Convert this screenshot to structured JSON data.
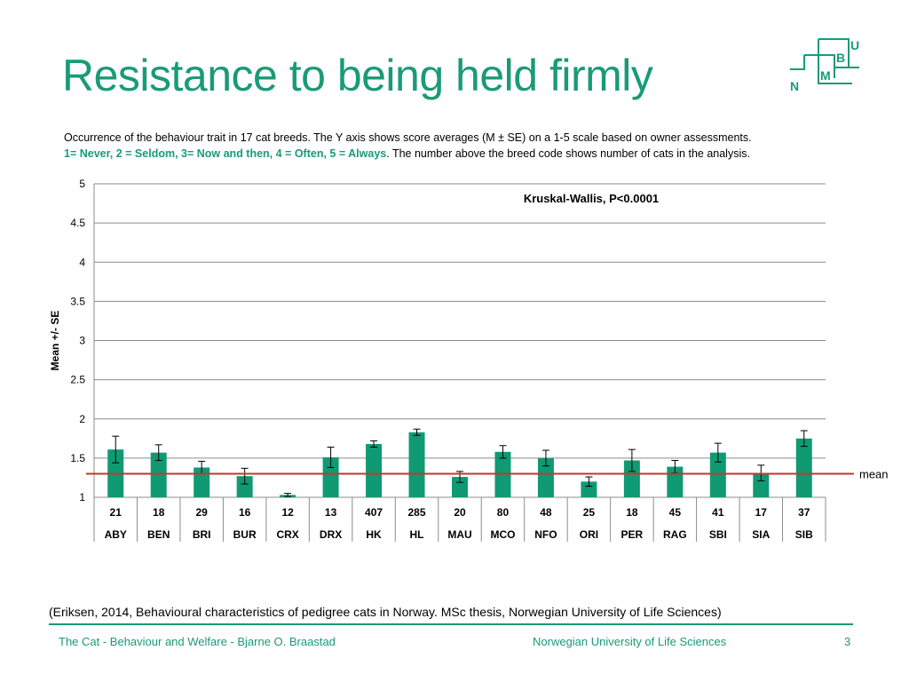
{
  "slide": {
    "title": "Resistance to being held firmly",
    "description_1": "Occurrence of the behaviour trait in 17 cat breeds. The Y axis shows score averages (M ± SE) on a 1-5 scale based on owner assessments.",
    "description_scale": "1= Never, 2 = Seldom, 3= Now and then, 4 = Often, 5 = Always",
    "description_2": ". The number above the breed code shows number of cats in the analysis.",
    "citation": "(Eriksen, 2014, Behavioural characteristics of pedigree cats in Norway. MSc thesis, Norwegian University of Life Sciences)",
    "footer_left": "The Cat - Behaviour and Welfare - Bjarne O. Braastad",
    "footer_center": "Norwegian University of Life Sciences",
    "page_number": "3"
  },
  "logo": {
    "letters": [
      "U",
      "B",
      "M",
      "N"
    ]
  },
  "colors": {
    "accent": "#1a9a78",
    "bar": "#109a74",
    "mean_line": "#c0392b"
  },
  "chart_data": {
    "type": "bar",
    "ylabel": "Mean +/- SE",
    "ylim": [
      1,
      5
    ],
    "yticks": [
      "1",
      "1.5",
      "2",
      "2.5",
      "3",
      "3.5",
      "4",
      "4.5",
      "5"
    ],
    "annotation": "Kruskal-Wallis, P<0.0001",
    "mean_label": "mean",
    "mean_value": 1.3,
    "categories": [
      "ABY",
      "BEN",
      "BRI",
      "BUR",
      "CRX",
      "DRX",
      "HK",
      "HL",
      "MAU",
      "MCO",
      "NFO",
      "ORI",
      "PER",
      "RAG",
      "SBI",
      "SIA",
      "SIB"
    ],
    "n": [
      "21",
      "18",
      "29",
      "16",
      "12",
      "13",
      "407",
      "285",
      "20",
      "80",
      "48",
      "25",
      "18",
      "45",
      "41",
      "17",
      "37"
    ],
    "values": [
      1.61,
      1.57,
      1.38,
      1.27,
      1.03,
      1.51,
      1.68,
      1.83,
      1.26,
      1.58,
      1.5,
      1.2,
      1.47,
      1.39,
      1.57,
      1.31,
      1.75
    ],
    "errors": [
      0.17,
      0.1,
      0.08,
      0.1,
      0.02,
      0.13,
      0.04,
      0.04,
      0.07,
      0.08,
      0.1,
      0.06,
      0.14,
      0.08,
      0.12,
      0.1,
      0.1
    ]
  }
}
